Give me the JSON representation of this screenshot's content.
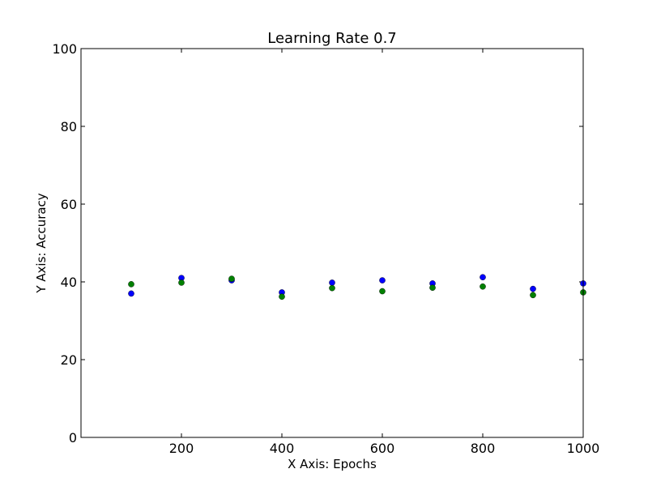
{
  "chart_data": {
    "type": "scatter",
    "title": "Learning Rate 0.7",
    "xlabel": "X Axis: Epochs",
    "ylabel": "Y Axis: Accuracy",
    "xlim": [
      0,
      1000
    ],
    "ylim": [
      0,
      100
    ],
    "xticks": [
      200,
      400,
      600,
      800,
      1000
    ],
    "yticks": [
      0,
      20,
      40,
      60,
      80,
      100
    ],
    "grid": false,
    "x": [
      100,
      200,
      300,
      400,
      500,
      600,
      700,
      800,
      900,
      1000
    ],
    "series": [
      {
        "color": "#0000ff",
        "values": [
          37.0,
          41.0,
          40.4,
          37.3,
          39.8,
          40.4,
          39.6,
          41.2,
          38.2,
          39.6
        ]
      },
      {
        "color": "#008000",
        "values": [
          39.4,
          39.8,
          40.8,
          36.2,
          38.4,
          37.6,
          38.5,
          38.8,
          36.6,
          37.3
        ]
      }
    ]
  }
}
